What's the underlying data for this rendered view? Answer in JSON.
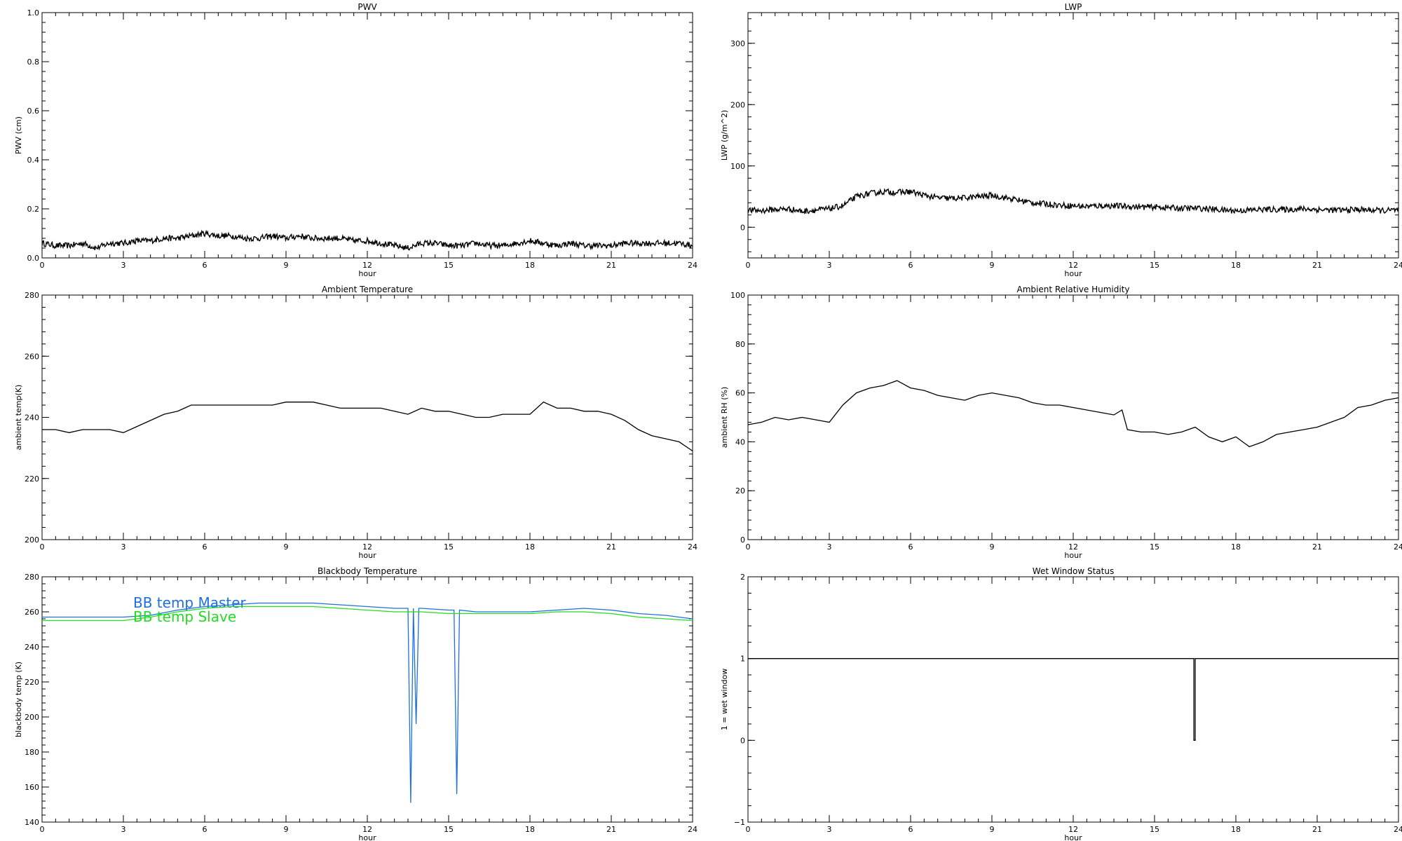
{
  "chart_data": [
    {
      "type": "line",
      "title": "PWV",
      "xlabel": "hour",
      "ylabel": "PWV (cm)",
      "xlim": [
        0,
        24
      ],
      "ylim": [
        0,
        1
      ],
      "xticks": [
        "0",
        "3",
        "6",
        "9",
        "12",
        "15",
        "18",
        "21",
        "24"
      ],
      "yticks": [
        "0.0",
        "0.2",
        "0.4",
        "0.6",
        "0.8",
        "1.0"
      ],
      "noisy": true,
      "series": [
        {
          "color": "#000000",
          "x": [
            0,
            0.5,
            1,
            1.5,
            2,
            2.5,
            3,
            3.5,
            4,
            4.5,
            5,
            5.5,
            6,
            6.5,
            7,
            7.5,
            8,
            8.5,
            9,
            9.5,
            10,
            10.5,
            11,
            11.5,
            12,
            12.5,
            13,
            13.5,
            14,
            14.5,
            15,
            15.5,
            16,
            16.5,
            17,
            17.5,
            18,
            18.5,
            19,
            19.5,
            20,
            20.5,
            21,
            21.5,
            22,
            22.5,
            23,
            23.5,
            24
          ],
          "y": [
            0.06,
            0.05,
            0.05,
            0.06,
            0.04,
            0.06,
            0.06,
            0.07,
            0.07,
            0.08,
            0.08,
            0.09,
            0.1,
            0.09,
            0.09,
            0.08,
            0.08,
            0.09,
            0.08,
            0.09,
            0.08,
            0.08,
            0.08,
            0.07,
            0.07,
            0.06,
            0.05,
            0.04,
            0.06,
            0.06,
            0.05,
            0.05,
            0.06,
            0.05,
            0.05,
            0.06,
            0.07,
            0.06,
            0.05,
            0.06,
            0.05,
            0.05,
            0.05,
            0.06,
            0.06,
            0.06,
            0.06,
            0.06,
            0.05
          ]
        }
      ]
    },
    {
      "type": "line",
      "title": "LWP",
      "xlabel": "hour",
      "ylabel": "LWP (g/m^2)",
      "xlim": [
        0,
        24
      ],
      "ylim": [
        -50,
        350
      ],
      "xticks": [
        "0",
        "3",
        "6",
        "9",
        "12",
        "15",
        "18",
        "21",
        "24"
      ],
      "yticks": [
        "0",
        "100",
        "200",
        "300"
      ],
      "noisy": true,
      "series": [
        {
          "color": "#000000",
          "x": [
            0,
            0.5,
            1,
            1.5,
            2,
            2.5,
            3,
            3.5,
            4,
            4.5,
            5,
            5.5,
            6,
            6.5,
            7,
            7.5,
            8,
            8.5,
            9,
            9.5,
            10,
            10.5,
            11,
            11.5,
            12,
            12.5,
            13,
            13.5,
            14,
            14.5,
            15,
            15.5,
            16,
            16.5,
            17,
            17.5,
            18,
            18.5,
            19,
            19.5,
            20,
            20.5,
            21,
            21.5,
            22,
            22.5,
            23,
            23.5,
            24
          ],
          "y": [
            28,
            27,
            29,
            30,
            26,
            28,
            30,
            35,
            50,
            55,
            58,
            57,
            58,
            52,
            48,
            47,
            48,
            50,
            52,
            48,
            44,
            40,
            38,
            36,
            35,
            34,
            35,
            35,
            34,
            33,
            33,
            32,
            31,
            31,
            30,
            28,
            27,
            28,
            29,
            29,
            29,
            30,
            29,
            28,
            28,
            29,
            28,
            27,
            28
          ]
        }
      ]
    },
    {
      "type": "line",
      "title": "Ambient Temperature",
      "xlabel": "hour",
      "ylabel": "ambient temp(K)",
      "xlim": [
        0,
        24
      ],
      "ylim": [
        200,
        280
      ],
      "xticks": [
        "0",
        "3",
        "6",
        "9",
        "12",
        "15",
        "18",
        "21",
        "24"
      ],
      "yticks": [
        "200",
        "220",
        "240",
        "260",
        "280"
      ],
      "noisy": false,
      "series": [
        {
          "color": "#000000",
          "x": [
            0,
            0.5,
            1,
            1.5,
            2,
            2.5,
            3,
            3.5,
            4,
            4.5,
            5,
            5.5,
            6,
            6.5,
            7,
            7.5,
            8,
            8.5,
            9,
            9.5,
            10,
            10.5,
            11,
            11.5,
            12,
            12.5,
            13,
            13.5,
            14,
            14.5,
            15,
            15.5,
            16,
            16.5,
            17,
            17.5,
            18,
            18.5,
            19,
            19.5,
            20,
            20.5,
            21,
            21.5,
            22,
            22.5,
            23,
            23.5,
            24
          ],
          "y": [
            236,
            236,
            235,
            236,
            236,
            236,
            235,
            237,
            239,
            241,
            242,
            244,
            244,
            244,
            244,
            244,
            244,
            244,
            245,
            245,
            245,
            244,
            243,
            243,
            243,
            243,
            242,
            241,
            243,
            242,
            242,
            241,
            240,
            240,
            241,
            241,
            241,
            245,
            243,
            243,
            242,
            242,
            241,
            239,
            236,
            234,
            233,
            232,
            229
          ]
        }
      ]
    },
    {
      "type": "line",
      "title": "Ambient Relative Humidity",
      "xlabel": "hour",
      "ylabel": "ambient RH (%)",
      "xlim": [
        0,
        24
      ],
      "ylim": [
        0,
        100
      ],
      "xticks": [
        "0",
        "3",
        "6",
        "9",
        "12",
        "15",
        "18",
        "21",
        "24"
      ],
      "yticks": [
        "0",
        "20",
        "40",
        "60",
        "80",
        "100"
      ],
      "noisy": false,
      "series": [
        {
          "color": "#000000",
          "x": [
            0,
            0.5,
            1,
            1.5,
            2,
            2.5,
            3,
            3.5,
            4,
            4.5,
            5,
            5.5,
            6,
            6.5,
            7,
            7.5,
            8,
            8.5,
            9,
            9.5,
            10,
            10.5,
            11,
            11.5,
            12,
            12.5,
            13,
            13.5,
            13.8,
            14,
            14.5,
            15,
            15.5,
            16,
            16.5,
            17,
            17.5,
            18,
            18.5,
            19,
            19.5,
            20,
            20.5,
            21,
            21.5,
            22,
            22.5,
            23,
            23.5,
            24
          ],
          "y": [
            47,
            48,
            50,
            49,
            50,
            49,
            48,
            55,
            60,
            62,
            63,
            65,
            62,
            61,
            59,
            58,
            57,
            59,
            60,
            59,
            58,
            56,
            55,
            55,
            54,
            53,
            52,
            51,
            53,
            45,
            44,
            44,
            43,
            44,
            46,
            42,
            40,
            42,
            38,
            40,
            43,
            44,
            45,
            46,
            48,
            50,
            54,
            55,
            57,
            58
          ]
        }
      ]
    },
    {
      "type": "line",
      "title": "Blackbody Temperature",
      "xlabel": "hour",
      "ylabel": "blackbody temp (K)",
      "xlim": [
        0,
        24
      ],
      "ylim": [
        140,
        280
      ],
      "xticks": [
        "0",
        "3",
        "6",
        "9",
        "12",
        "15",
        "18",
        "21",
        "24"
      ],
      "yticks": [
        "140",
        "160",
        "180",
        "200",
        "220",
        "240",
        "260",
        "280"
      ],
      "noisy": false,
      "legend": "top-left",
      "series": [
        {
          "name": "BB temp Master",
          "color": "#1f6fe0",
          "x": [
            0,
            1,
            2,
            3,
            4,
            5,
            6,
            7,
            8,
            9,
            10,
            11,
            12,
            13,
            13.5,
            13.6,
            13.7,
            13.8,
            13.9,
            14,
            15,
            15.2,
            15.3,
            15.4,
            16,
            17,
            18,
            19,
            20,
            21,
            22,
            23,
            24
          ],
          "y": [
            257,
            257,
            257,
            257,
            258,
            261,
            263,
            264,
            265,
            265,
            265,
            264,
            263,
            262,
            262,
            151,
            262,
            196,
            262,
            262,
            261,
            261,
            156,
            261,
            260,
            260,
            260,
            261,
            262,
            261,
            259,
            258,
            256
          ]
        },
        {
          "name": "BB temp Slave",
          "color": "#22dd22",
          "x": [
            0,
            1,
            2,
            3,
            4,
            5,
            6,
            7,
            8,
            9,
            10,
            11,
            12,
            13,
            14,
            15,
            16,
            17,
            18,
            19,
            20,
            21,
            22,
            23,
            24
          ],
          "y": [
            255,
            255,
            255,
            255,
            257,
            260,
            262,
            263,
            263,
            263,
            263,
            262,
            261,
            260,
            260,
            259,
            259,
            259,
            259,
            260,
            260,
            259,
            257,
            256,
            255
          ]
        }
      ]
    },
    {
      "type": "line",
      "title": "Wet Window Status",
      "xlabel": "hour",
      "ylabel": "1 = wet window",
      "xlim": [
        0,
        24
      ],
      "ylim": [
        -1,
        2
      ],
      "xticks": [
        "0",
        "3",
        "6",
        "9",
        "12",
        "15",
        "18",
        "21",
        "24"
      ],
      "yticks": [
        "−1",
        "0",
        "1",
        "2"
      ],
      "noisy": false,
      "series": [
        {
          "color": "#000000",
          "x": [
            0,
            16.45,
            16.45,
            16.5,
            16.5,
            24
          ],
          "y": [
            1,
            1,
            0,
            0,
            1,
            1
          ]
        }
      ]
    }
  ]
}
